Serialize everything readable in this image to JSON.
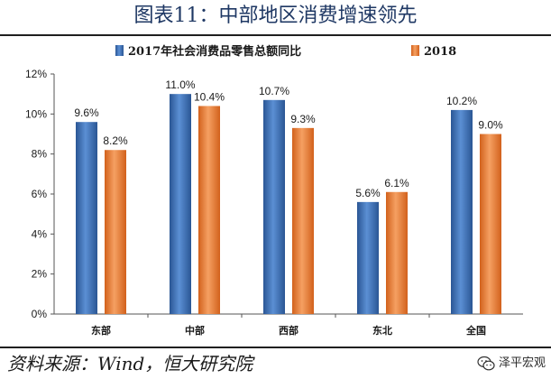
{
  "page": {
    "title": "图表11：中部地区消费增速领先",
    "source": "资料来源：Wind，恒大研究院",
    "watermark": "泽平宏观"
  },
  "colors": {
    "series1": "#3d6fb4",
    "series2": "#e8772e",
    "title": "#1f3864"
  },
  "chart_data": {
    "type": "bar",
    "categories": [
      "东部",
      "中部",
      "西部",
      "东北",
      "全国"
    ],
    "series": [
      {
        "name": "2017年社会消费品零售总额同比",
        "values": [
          9.6,
          11.0,
          10.7,
          5.6,
          10.2
        ],
        "labels": [
          "9.6%",
          "11.0%",
          "10.7%",
          "5.6%",
          "10.2%"
        ]
      },
      {
        "name": "2018",
        "values": [
          8.2,
          10.4,
          9.3,
          6.1,
          9.0
        ],
        "labels": [
          "8.2%",
          "10.4%",
          "9.3%",
          "6.1%",
          "9.0%"
        ]
      }
    ],
    "ylim": [
      0,
      12
    ],
    "yticks": [
      "0%",
      "2%",
      "4%",
      "6%",
      "8%",
      "10%",
      "12%"
    ],
    "ytick_values": [
      0,
      2,
      4,
      6,
      8,
      10,
      12
    ],
    "grid": false,
    "legend_position": "top-center"
  }
}
